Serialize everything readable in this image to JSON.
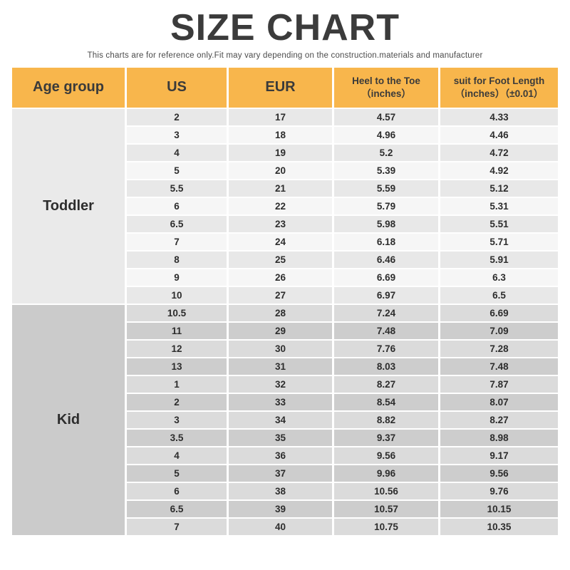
{
  "page": {
    "title": "SIZE CHART",
    "subtitle": "This charts are for reference only.Fit may vary depending on the construction.materials and manufacturer"
  },
  "colors": {
    "header_bg": "#F8B64C",
    "title_text": "#3B3B3B",
    "cell_text": "#2D2D2D",
    "toddler_label_bg": "#EAEAEA",
    "toddler_row_odd_bg": "#E8E8E8",
    "toddler_row_even_bg": "#F6F6F6",
    "kid_label_bg": "#CBCBCB",
    "kid_row_odd_bg": "#DBDBDB",
    "kid_row_even_bg": "#CDCDCD"
  },
  "table": {
    "columns": [
      {
        "label": "Age group"
      },
      {
        "label": "US"
      },
      {
        "label": "EUR"
      },
      {
        "line1": "Heel to the Toe",
        "line2": "（inches）"
      },
      {
        "line1": "suit for Foot Length",
        "line2": "（inches）（±0.01）"
      }
    ],
    "sections": [
      {
        "label": "Toddler",
        "rows": [
          [
            "2",
            "17",
            "4.57",
            "4.33"
          ],
          [
            "3",
            "18",
            "4.96",
            "4.46"
          ],
          [
            "4",
            "19",
            "5.2",
            "4.72"
          ],
          [
            "5",
            "20",
            "5.39",
            "4.92"
          ],
          [
            "5.5",
            "21",
            "5.59",
            "5.12"
          ],
          [
            "6",
            "22",
            "5.79",
            "5.31"
          ],
          [
            "6.5",
            "23",
            "5.98",
            "5.51"
          ],
          [
            "7",
            "24",
            "6.18",
            "5.71"
          ],
          [
            "8",
            "25",
            "6.46",
            "5.91"
          ],
          [
            "9",
            "26",
            "6.69",
            "6.3"
          ],
          [
            "10",
            "27",
            "6.97",
            "6.5"
          ]
        ]
      },
      {
        "label": "Kid",
        "rows": [
          [
            "10.5",
            "28",
            "7.24",
            "6.69"
          ],
          [
            "11",
            "29",
            "7.48",
            "7.09"
          ],
          [
            "12",
            "30",
            "7.76",
            "7.28"
          ],
          [
            "13",
            "31",
            "8.03",
            "7.48"
          ],
          [
            "1",
            "32",
            "8.27",
            "7.87"
          ],
          [
            "2",
            "33",
            "8.54",
            "8.07"
          ],
          [
            "3",
            "34",
            "8.82",
            "8.27"
          ],
          [
            "3.5",
            "35",
            "9.37",
            "8.98"
          ],
          [
            "4",
            "36",
            "9.56",
            "9.17"
          ],
          [
            "5",
            "37",
            "9.96",
            "9.56"
          ],
          [
            "6",
            "38",
            "10.56",
            "9.76"
          ],
          [
            "6.5",
            "39",
            "10.57",
            "10.15"
          ],
          [
            "7",
            "40",
            "10.75",
            "10.35"
          ]
        ]
      }
    ]
  },
  "chart_data": {
    "type": "table",
    "title": "SIZE CHART",
    "subtitle": "This charts are for reference only.Fit may vary depending on the construction.materials and manufacturer",
    "columns": [
      "Age group",
      "US",
      "EUR",
      "Heel to the Toe (inches)",
      "suit for Foot Length (inches) (±0.01)"
    ],
    "rows": [
      [
        "Toddler",
        "2",
        "17",
        "4.57",
        "4.33"
      ],
      [
        "Toddler",
        "3",
        "18",
        "4.96",
        "4.46"
      ],
      [
        "Toddler",
        "4",
        "19",
        "5.2",
        "4.72"
      ],
      [
        "Toddler",
        "5",
        "20",
        "5.39",
        "4.92"
      ],
      [
        "Toddler",
        "5.5",
        "21",
        "5.59",
        "5.12"
      ],
      [
        "Toddler",
        "6",
        "22",
        "5.79",
        "5.31"
      ],
      [
        "Toddler",
        "6.5",
        "23",
        "5.98",
        "5.51"
      ],
      [
        "Toddler",
        "7",
        "24",
        "6.18",
        "5.71"
      ],
      [
        "Toddler",
        "8",
        "25",
        "6.46",
        "5.91"
      ],
      [
        "Toddler",
        "9",
        "26",
        "6.69",
        "6.3"
      ],
      [
        "Toddler",
        "10",
        "27",
        "6.97",
        "6.5"
      ],
      [
        "Kid",
        "10.5",
        "28",
        "7.24",
        "6.69"
      ],
      [
        "Kid",
        "11",
        "29",
        "7.48",
        "7.09"
      ],
      [
        "Kid",
        "12",
        "30",
        "7.76",
        "7.28"
      ],
      [
        "Kid",
        "13",
        "31",
        "8.03",
        "7.48"
      ],
      [
        "Kid",
        "1",
        "32",
        "8.27",
        "7.87"
      ],
      [
        "Kid",
        "2",
        "33",
        "8.54",
        "8.07"
      ],
      [
        "Kid",
        "3",
        "34",
        "8.82",
        "8.27"
      ],
      [
        "Kid",
        "3.5",
        "35",
        "9.37",
        "8.98"
      ],
      [
        "Kid",
        "4",
        "36",
        "9.56",
        "9.17"
      ],
      [
        "Kid",
        "5",
        "37",
        "9.96",
        "9.56"
      ],
      [
        "Kid",
        "6",
        "38",
        "10.56",
        "9.76"
      ],
      [
        "Kid",
        "6.5",
        "39",
        "10.57",
        "10.15"
      ],
      [
        "Kid",
        "7",
        "40",
        "10.75",
        "10.35"
      ]
    ]
  }
}
